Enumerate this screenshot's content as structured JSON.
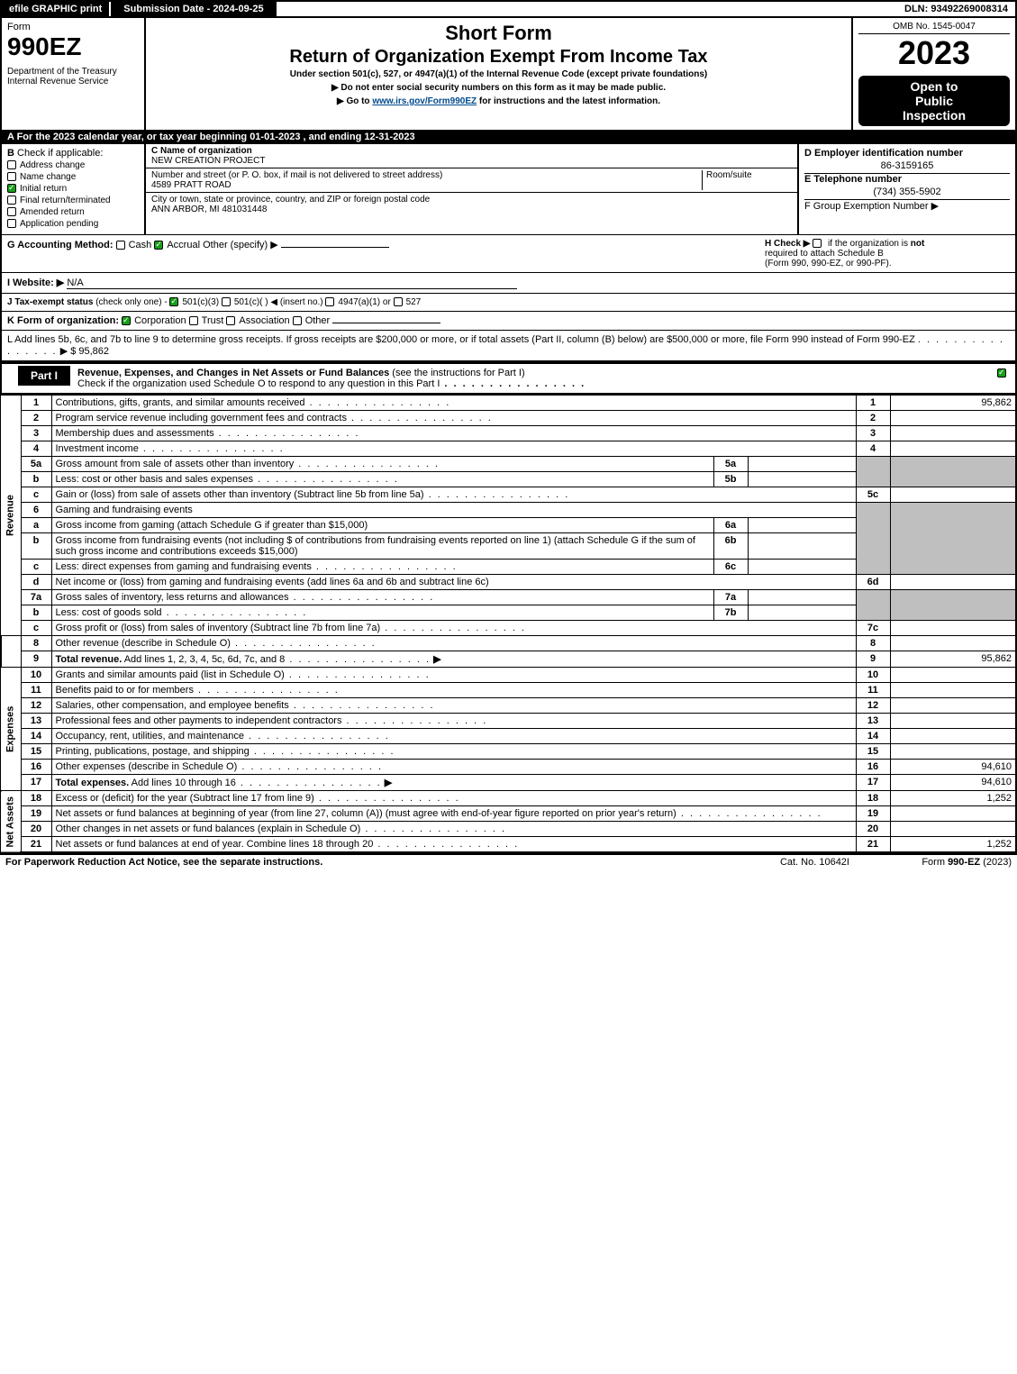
{
  "topbar": {
    "efile": "efile GRAPHIC print",
    "submission": "Submission Date - 2024-09-25",
    "dln": "DLN: 93492269008314"
  },
  "header": {
    "form_word": "Form",
    "form_number": "990EZ",
    "dept": "Department of the Treasury",
    "irs": "Internal Revenue Service",
    "short_form": "Short Form",
    "return_title": "Return of Organization Exempt From Income Tax",
    "under_section": "Under section 501(c), 527, or 4947(a)(1) of the Internal Revenue Code (except private foundations)",
    "bullet1": "▶ Do not enter social security numbers on this form as it may be made public.",
    "bullet2_pre": "▶ Go to ",
    "bullet2_link": "www.irs.gov/Form990EZ",
    "bullet2_post": " for instructions and the latest information.",
    "omb": "OMB No. 1545-0047",
    "year": "2023",
    "open1": "Open to",
    "open2": "Public",
    "open3": "Inspection"
  },
  "sectA": "A  For the 2023 calendar year, or tax year beginning 01-01-2023 , and ending 12-31-2023",
  "B": {
    "title": "B",
    "subtitle": "Check if applicable:",
    "items": [
      {
        "label": "Address change",
        "checked": false
      },
      {
        "label": "Name change",
        "checked": false
      },
      {
        "label": "Initial return",
        "checked": true
      },
      {
        "label": "Final return/terminated",
        "checked": false
      },
      {
        "label": "Amended return",
        "checked": false
      },
      {
        "label": "Application pending",
        "checked": false
      }
    ]
  },
  "C": {
    "name_label": "C Name of organization",
    "name": "NEW CREATION PROJECT",
    "street_label": "Number and street (or P. O. box, if mail is not delivered to street address)",
    "street": "4589 PRATT ROAD",
    "room_label": "Room/suite",
    "city_label": "City or town, state or province, country, and ZIP or foreign postal code",
    "city": "ANN ARBOR, MI  481031448"
  },
  "D": {
    "label": "D Employer identification number",
    "ein": "86-3159165",
    "e_label": "E Telephone number",
    "phone": "(734) 355-5902",
    "f_label": "F Group Exemption Number  ▶"
  },
  "G": {
    "prefix": "G Accounting Method:",
    "cash": "Cash",
    "accrual": "Accrual",
    "other": "Other (specify) ▶"
  },
  "H": {
    "text1": "H  Check ▶",
    "text2": "if the organization is",
    "not": "not",
    "text3": "required to attach Schedule B",
    "text4": "(Form 990, 990-EZ, or 990-PF)."
  },
  "I": {
    "prefix": "I Website: ▶",
    "value": "N/A"
  },
  "J": {
    "prefix": "J Tax-exempt status",
    "small": "(check only one) -",
    "opt1": "501(c)(3)",
    "opt2": "501(c)(  ) ◀ (insert no.)",
    "opt3": "4947(a)(1) or",
    "opt4": "527"
  },
  "K": {
    "prefix": "K Form of organization:",
    "opts": [
      "Corporation",
      "Trust",
      "Association",
      "Other"
    ],
    "checked_index": 0
  },
  "L": {
    "text": "L Add lines 5b, 6c, and 7b to line 9 to determine gross receipts. If gross receipts are $200,000 or more, or if total assets (Part II, column (B) below) are $500,000 or more, file Form 990 instead of Form 990-EZ",
    "amount_prefix": "▶ $ ",
    "amount": "95,862"
  },
  "part1": {
    "tab": "Part I",
    "title": "Revenue, Expenses, and Changes in Net Assets or Fund Balances",
    "title_paren": "(see the instructions for Part I)",
    "check_line": "Check if the organization used Schedule O to respond to any question in this Part I"
  },
  "sideLabels": {
    "revenue": "Revenue",
    "expenses": "Expenses",
    "netassets": "Net Assets"
  },
  "lines": {
    "l1": {
      "n": "1",
      "d": "Contributions, gifts, grants, and similar amounts received",
      "ref": "1",
      "amt": "95,862"
    },
    "l2": {
      "n": "2",
      "d": "Program service revenue including government fees and contracts",
      "ref": "2",
      "amt": ""
    },
    "l3": {
      "n": "3",
      "d": "Membership dues and assessments",
      "ref": "3",
      "amt": ""
    },
    "l4": {
      "n": "4",
      "d": "Investment income",
      "ref": "4",
      "amt": ""
    },
    "l5a": {
      "n": "5a",
      "d": "Gross amount from sale of assets other than inventory",
      "sub": "5a"
    },
    "l5b": {
      "n": "b",
      "d": "Less: cost or other basis and sales expenses",
      "sub": "5b"
    },
    "l5c": {
      "n": "c",
      "d": "Gain or (loss) from sale of assets other than inventory (Subtract line 5b from line 5a)",
      "ref": "5c",
      "amt": ""
    },
    "l6": {
      "n": "6",
      "d": "Gaming and fundraising events"
    },
    "l6a": {
      "n": "a",
      "d": "Gross income from gaming (attach Schedule G if greater than $15,000)",
      "sub": "6a"
    },
    "l6b": {
      "n": "b",
      "d": "Gross income from fundraising events (not including $                  of contributions from fundraising events reported on line 1) (attach Schedule G if the sum of such gross income and contributions exceeds $15,000)",
      "sub": "6b"
    },
    "l6c": {
      "n": "c",
      "d": "Less: direct expenses from gaming and fundraising events",
      "sub": "6c"
    },
    "l6d": {
      "n": "d",
      "d": "Net income or (loss) from gaming and fundraising events (add lines 6a and 6b and subtract line 6c)",
      "ref": "6d",
      "amt": ""
    },
    "l7a": {
      "n": "7a",
      "d": "Gross sales of inventory, less returns and allowances",
      "sub": "7a"
    },
    "l7b": {
      "n": "b",
      "d": "Less: cost of goods sold",
      "sub": "7b"
    },
    "l7c": {
      "n": "c",
      "d": "Gross profit or (loss) from sales of inventory (Subtract line 7b from line 7a)",
      "ref": "7c",
      "amt": ""
    },
    "l8": {
      "n": "8",
      "d": "Other revenue (describe in Schedule O)",
      "ref": "8",
      "amt": ""
    },
    "l9": {
      "n": "9",
      "d": "Total revenue.",
      "d2": " Add lines 1, 2, 3, 4, 5c, 6d, 7c, and 8",
      "ref": "9",
      "amt": "95,862",
      "bold": true,
      "arrow": true
    },
    "l10": {
      "n": "10",
      "d": "Grants and similar amounts paid (list in Schedule O)",
      "ref": "10",
      "amt": ""
    },
    "l11": {
      "n": "11",
      "d": "Benefits paid to or for members",
      "ref": "11",
      "amt": ""
    },
    "l12": {
      "n": "12",
      "d": "Salaries, other compensation, and employee benefits",
      "ref": "12",
      "amt": ""
    },
    "l13": {
      "n": "13",
      "d": "Professional fees and other payments to independent contractors",
      "ref": "13",
      "amt": ""
    },
    "l14": {
      "n": "14",
      "d": "Occupancy, rent, utilities, and maintenance",
      "ref": "14",
      "amt": ""
    },
    "l15": {
      "n": "15",
      "d": "Printing, publications, postage, and shipping",
      "ref": "15",
      "amt": ""
    },
    "l16": {
      "n": "16",
      "d": "Other expenses (describe in Schedule O)",
      "ref": "16",
      "amt": "94,610"
    },
    "l17": {
      "n": "17",
      "d": "Total expenses.",
      "d2": " Add lines 10 through 16",
      "ref": "17",
      "amt": "94,610",
      "bold": true,
      "arrow": true
    },
    "l18": {
      "n": "18",
      "d": "Excess or (deficit) for the year (Subtract line 17 from line 9)",
      "ref": "18",
      "amt": "1,252"
    },
    "l19": {
      "n": "19",
      "d": "Net assets or fund balances at beginning of year (from line 27, column (A)) (must agree with end-of-year figure reported on prior year's return)",
      "ref": "19",
      "amt": ""
    },
    "l20": {
      "n": "20",
      "d": "Other changes in net assets or fund balances (explain in Schedule O)",
      "ref": "20",
      "amt": ""
    },
    "l21": {
      "n": "21",
      "d": "Net assets or fund balances at end of year. Combine lines 18 through 20",
      "ref": "21",
      "amt": "1,252"
    }
  },
  "footer": {
    "left": "For Paperwork Reduction Act Notice, see the separate instructions.",
    "center": "Cat. No. 10642I",
    "right_pre": "Form ",
    "right_bold": "990-EZ",
    "right_post": " (2023)"
  },
  "colors": {
    "accent": "#004b8d",
    "shade": "#bfbfbf",
    "check": "#17a017"
  }
}
